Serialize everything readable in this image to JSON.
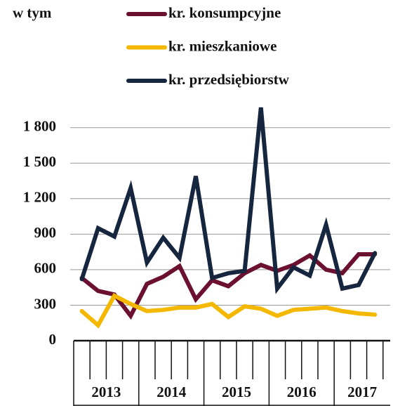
{
  "chart_data": {
    "type": "line",
    "legend_title": "w tym",
    "categories": [
      null,
      null,
      null,
      null,
      null,
      null,
      null,
      null,
      null,
      null,
      null,
      null,
      null,
      null,
      null,
      null,
      null,
      null,
      null
    ],
    "groups": [
      {
        "label": "2013",
        "size": 4
      },
      {
        "label": "2014",
        "size": 4
      },
      {
        "label": "2015",
        "size": 4
      },
      {
        "label": "2016",
        "size": 4
      },
      {
        "label": "2017",
        "size": 3
      }
    ],
    "series": [
      {
        "name": "kr. konsumpcyjne",
        "color": "#6b1030",
        "values": [
          530,
          420,
          390,
          210,
          480,
          540,
          630,
          350,
          510,
          460,
          570,
          640,
          590,
          640,
          720,
          600,
          570,
          730,
          730
        ]
      },
      {
        "name": "kr. mieszkaniowe",
        "color": "#f5b800",
        "values": [
          250,
          130,
          380,
          310,
          250,
          260,
          280,
          280,
          310,
          200,
          290,
          270,
          210,
          260,
          270,
          280,
          250,
          230,
          220
        ]
      },
      {
        "name": "kr. przedsiębiorstw",
        "color": "#17263f",
        "values": [
          520,
          950,
          880,
          1290,
          660,
          870,
          700,
          1390,
          530,
          570,
          590,
          1970,
          440,
          620,
          550,
          980,
          440,
          470,
          740
        ]
      }
    ],
    "ylim": [
      0,
      2000
    ],
    "yticks": [
      0,
      {
        "value": 300,
        "label": "300"
      },
      {
        "value": 600,
        "label": "600"
      },
      {
        "value": 900,
        "label": "900"
      },
      {
        "value": 1200,
        "label": "1 200"
      },
      {
        "value": 1500,
        "label": "1 500"
      },
      {
        "value": 1800,
        "label": "1 800"
      }
    ],
    "grid": true
  }
}
